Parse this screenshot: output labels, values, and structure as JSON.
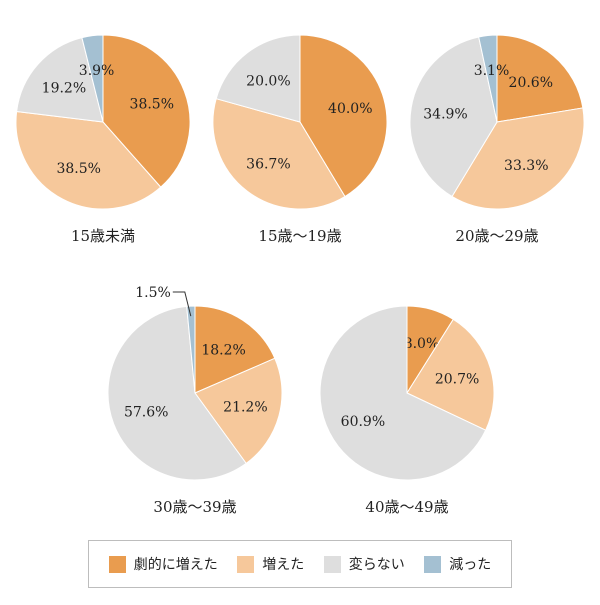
{
  "colors": {
    "劇的に増えた": "#E99C4F",
    "増えた": "#F6C89B",
    "変らない": "#DEDEDE",
    "減った": "#A4C0D2"
  },
  "legend": {
    "items": [
      {
        "label": "劇的に増えた",
        "color": "#E99C4F"
      },
      {
        "label": "増えた",
        "color": "#F6C89B"
      },
      {
        "label": "変らない",
        "color": "#DEDEDE"
      },
      {
        "label": "減った",
        "color": "#A4C0D2"
      }
    ]
  },
  "chart_data": [
    {
      "type": "pie",
      "title": "15歳未満",
      "slices": [
        {
          "category": "劇的に増えた",
          "value": 38.5,
          "label": "38.5%"
        },
        {
          "category": "増えた",
          "value": 38.5,
          "label": "38.5%"
        },
        {
          "category": "変らない",
          "value": 19.2,
          "label": "19.2%"
        },
        {
          "category": "減った",
          "value": 3.9,
          "label": "3.9%"
        }
      ]
    },
    {
      "type": "pie",
      "title": "15歳～19歳",
      "slices": [
        {
          "category": "劇的に増えた",
          "value": 40.0,
          "label": "40.0%"
        },
        {
          "category": "増えた",
          "value": 36.7,
          "label": "36.7%"
        },
        {
          "category": "変らない",
          "value": 20.0,
          "label": "20.0%"
        }
      ]
    },
    {
      "type": "pie",
      "title": "20歳～29歳",
      "slices": [
        {
          "category": "劇的に増えた",
          "value": 20.6,
          "label": "20.6%"
        },
        {
          "category": "増えた",
          "value": 33.3,
          "label": "33.3%"
        },
        {
          "category": "変らない",
          "value": 34.9,
          "label": "34.9%"
        },
        {
          "category": "減った",
          "value": 3.1,
          "label": "3.1%"
        }
      ]
    },
    {
      "type": "pie",
      "title": "30歳～39歳",
      "slices": [
        {
          "category": "劇的に増えた",
          "value": 18.2,
          "label": "18.2%"
        },
        {
          "category": "増えた",
          "value": 21.2,
          "label": "21.2%"
        },
        {
          "category": "変らない",
          "value": 57.6,
          "label": "57.6%"
        },
        {
          "category": "減った",
          "value": 1.5,
          "label": "1.5%"
        }
      ]
    },
    {
      "type": "pie",
      "title": "40歳～49歳",
      "slices": [
        {
          "category": "劇的に増えた",
          "value": 8.0,
          "label": "8.0%"
        },
        {
          "category": "増えた",
          "value": 20.7,
          "label": "20.7%"
        },
        {
          "category": "変らない",
          "value": 60.9,
          "label": "60.9%"
        }
      ]
    }
  ]
}
